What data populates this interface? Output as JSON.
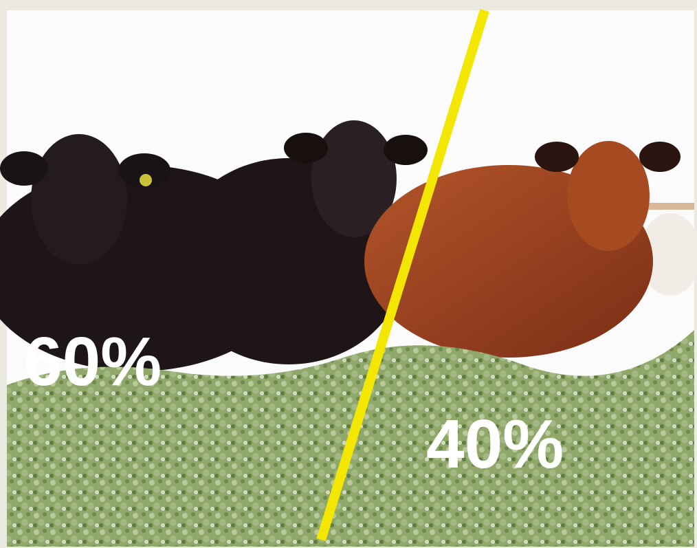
{
  "overlay": {
    "left_label": "60%",
    "right_label": "40%"
  }
}
